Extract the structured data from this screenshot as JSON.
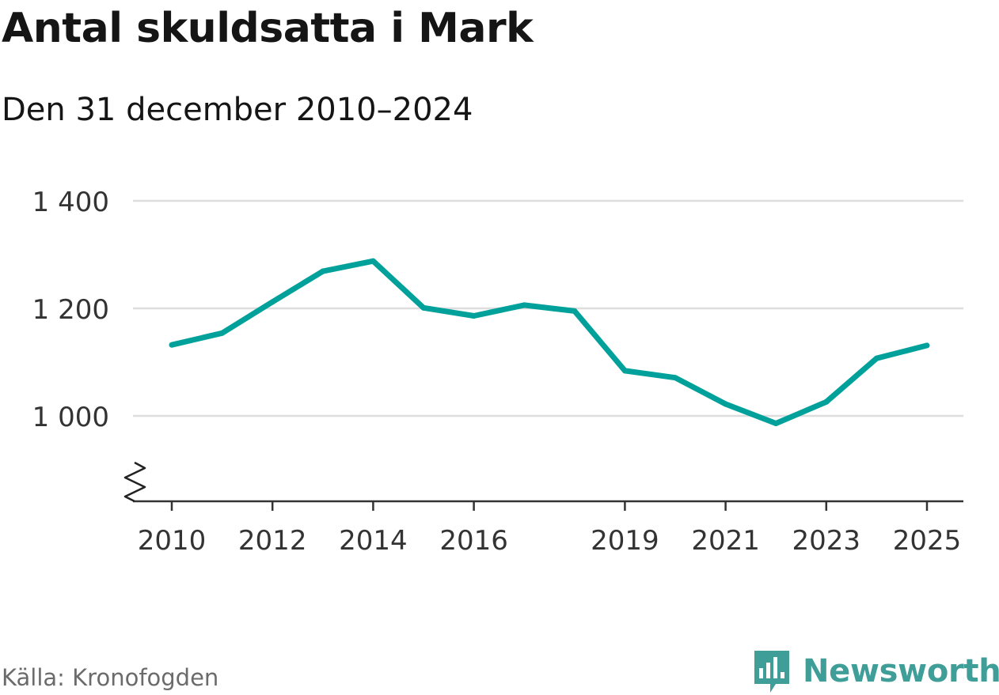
{
  "header": {
    "title": "Antal skuldsatta i Mark",
    "subtitle": "Den 31 december 2010–2024"
  },
  "footer": {
    "source": "Källa: Kronofogden",
    "brand": "Newsworthy"
  },
  "colors": {
    "line": "#00a19a",
    "grid": "#dddddd",
    "axis": "#333333",
    "brand": "#3f9e98"
  },
  "chart_data": {
    "type": "line",
    "title": "Antal skuldsatta i Mark",
    "subtitle": "Den 31 december 2010–2024",
    "xlabel": "",
    "ylabel": "",
    "x": [
      2010,
      2011,
      2012,
      2013,
      2014,
      2015,
      2016,
      2017,
      2018,
      2019,
      2020,
      2021,
      2022,
      2023,
      2024,
      2025
    ],
    "series": [
      {
        "values": [
          1132,
          1154,
          1212,
          1269,
          1288,
          1201,
          1186,
          1206,
          1195,
          1084,
          1071,
          1022,
          986,
          1026,
          1107,
          1131
        ]
      }
    ],
    "y_ticks": [
      1000,
      1200,
      1400
    ],
    "y_tick_labels": [
      "1 000",
      "1 200",
      "1 400"
    ],
    "x_ticks": [
      2010,
      2012,
      2014,
      2016,
      2019,
      2021,
      2023,
      2025
    ],
    "ylim": [
      840,
      1400
    ],
    "xlim": [
      2010,
      2025
    ],
    "y_axis_break": true,
    "grid": true,
    "legend": "none"
  }
}
